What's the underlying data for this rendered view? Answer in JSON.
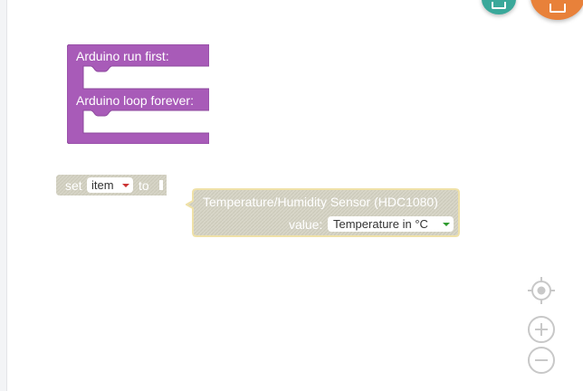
{
  "colors": {
    "arduino_block": "#a85bb8",
    "disabled_block": "#d8d6c8",
    "sensor_border": "#efe1a8",
    "control_gray": "#c8c8c8",
    "teal_button": "#3aa89a",
    "orange_button": "#e8813a"
  },
  "arduino_block": {
    "setup_label": "Arduino run first:",
    "loop_label": "Arduino loop forever:"
  },
  "set_block": {
    "set_label": "set",
    "variable": "item",
    "to_label": "to",
    "disabled": true
  },
  "sensor_block": {
    "title": "Temperature/Humidity Sensor (HDC1080)",
    "value_label": "value:",
    "selected_value": "Temperature in °C",
    "disabled": true
  },
  "controls": {
    "icons": [
      "target-icon",
      "zoom-in-icon",
      "zoom-out-icon"
    ]
  },
  "top_buttons": {
    "icons": [
      "save-icon",
      "download-icon"
    ]
  }
}
